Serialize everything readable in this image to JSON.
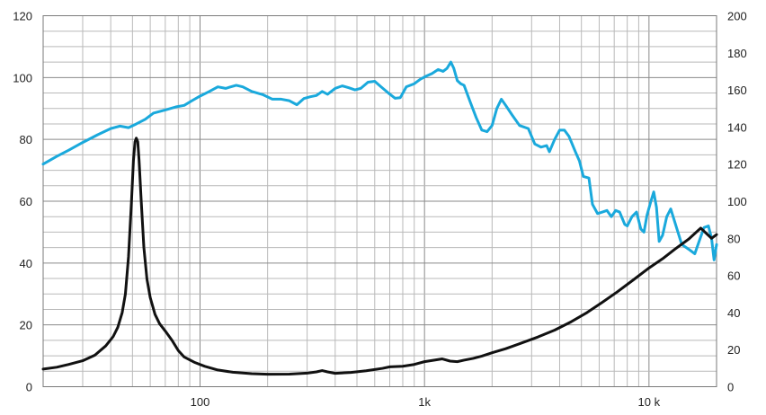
{
  "chart_data": {
    "type": "line",
    "x_scale": "log",
    "xlim": [
      20,
      20000
    ],
    "y_left_lim": [
      0,
      120
    ],
    "y_right_lim": [
      0,
      200
    ],
    "grid": true,
    "x_ticks": [
      {
        "value": 100,
        "label": "100"
      },
      {
        "value": 1000,
        "label": "1k"
      },
      {
        "value": 10000,
        "label": "10 k"
      }
    ],
    "y_left_ticks": [
      {
        "value": 0,
        "label": "0"
      },
      {
        "value": 20,
        "label": "20"
      },
      {
        "value": 40,
        "label": "40"
      },
      {
        "value": 60,
        "label": "60"
      },
      {
        "value": 80,
        "label": "80"
      },
      {
        "value": 100,
        "label": "100"
      },
      {
        "value": 120,
        "label": "120"
      }
    ],
    "y_right_ticks": [
      {
        "value": 0,
        "label": "0"
      },
      {
        "value": 20,
        "label": "20"
      },
      {
        "value": 40,
        "label": "40"
      },
      {
        "value": 60,
        "label": "60"
      },
      {
        "value": 80,
        "label": "80"
      },
      {
        "value": 100,
        "label": "100"
      },
      {
        "value": 120,
        "label": "120"
      },
      {
        "value": 140,
        "label": "140"
      },
      {
        "value": 160,
        "label": "160"
      },
      {
        "value": 180,
        "label": "180"
      },
      {
        "value": 200,
        "label": "200"
      }
    ],
    "colors": {
      "left_series": "#1aa9dc",
      "right_series": "#111111"
    },
    "series": [
      {
        "axis": "left",
        "color": "#1aa9dc",
        "points": [
          [
            20,
            72
          ],
          [
            23,
            74.5
          ],
          [
            26,
            76.5
          ],
          [
            30,
            79
          ],
          [
            35,
            81.5
          ],
          [
            40,
            83.5
          ],
          [
            44,
            84.3
          ],
          [
            48,
            83.8
          ],
          [
            52,
            85
          ],
          [
            57,
            86.5
          ],
          [
            62,
            88.5
          ],
          [
            70,
            89.5
          ],
          [
            78,
            90.5
          ],
          [
            85,
            91
          ],
          [
            92,
            92.5
          ],
          [
            100,
            94
          ],
          [
            110,
            95.5
          ],
          [
            120,
            97
          ],
          [
            130,
            96.5
          ],
          [
            145,
            97.5
          ],
          [
            155,
            97
          ],
          [
            170,
            95.5
          ],
          [
            190,
            94.5
          ],
          [
            210,
            93
          ],
          [
            230,
            93
          ],
          [
            250,
            92.5
          ],
          [
            270,
            91.2
          ],
          [
            290,
            93.2
          ],
          [
            310,
            93.8
          ],
          [
            330,
            94.2
          ],
          [
            350,
            95.5
          ],
          [
            370,
            94.6
          ],
          [
            400,
            96.5
          ],
          [
            430,
            97.3
          ],
          [
            460,
            96.7
          ],
          [
            490,
            96
          ],
          [
            520,
            96.5
          ],
          [
            560,
            98.5
          ],
          [
            600,
            98.8
          ],
          [
            640,
            97
          ],
          [
            690,
            95
          ],
          [
            740,
            93.3
          ],
          [
            780,
            93.5
          ],
          [
            830,
            97
          ],
          [
            900,
            98
          ],
          [
            960,
            99.5
          ],
          [
            1020,
            100.5
          ],
          [
            1080,
            101.3
          ],
          [
            1150,
            102.6
          ],
          [
            1210,
            102
          ],
          [
            1260,
            103
          ],
          [
            1310,
            105
          ],
          [
            1350,
            103
          ],
          [
            1400,
            99
          ],
          [
            1450,
            98
          ],
          [
            1500,
            97.5
          ],
          [
            1600,
            92
          ],
          [
            1700,
            87
          ],
          [
            1800,
            83
          ],
          [
            1900,
            82.5
          ],
          [
            2000,
            84.5
          ],
          [
            2100,
            90
          ],
          [
            2200,
            93
          ],
          [
            2300,
            91
          ],
          [
            2450,
            88
          ],
          [
            2650,
            84.5
          ],
          [
            2900,
            83.5
          ],
          [
            3100,
            78.5
          ],
          [
            3300,
            77.5
          ],
          [
            3500,
            78
          ],
          [
            3600,
            76
          ],
          [
            3800,
            80
          ],
          [
            4000,
            83
          ],
          [
            4200,
            83
          ],
          [
            4400,
            81
          ],
          [
            4700,
            76
          ],
          [
            4900,
            73
          ],
          [
            5100,
            68
          ],
          [
            5400,
            67.5
          ],
          [
            5600,
            59
          ],
          [
            5900,
            56
          ],
          [
            6200,
            56.5
          ],
          [
            6500,
            57
          ],
          [
            6800,
            55
          ],
          [
            7100,
            57
          ],
          [
            7400,
            56.5
          ],
          [
            7800,
            52.5
          ],
          [
            8000,
            52
          ],
          [
            8400,
            55
          ],
          [
            8800,
            56.5
          ],
          [
            9200,
            51
          ],
          [
            9500,
            50
          ],
          [
            9800,
            55.5
          ],
          [
            10200,
            60
          ],
          [
            10500,
            63
          ],
          [
            10800,
            58
          ],
          [
            11100,
            47
          ],
          [
            11500,
            49
          ],
          [
            12000,
            55
          ],
          [
            12500,
            57.5
          ],
          [
            13000,
            53.5
          ],
          [
            14000,
            46
          ],
          [
            15000,
            44.5
          ],
          [
            16000,
            43
          ],
          [
            17000,
            48.5
          ],
          [
            17600,
            51.5
          ],
          [
            18400,
            52
          ],
          [
            19000,
            48
          ],
          [
            19500,
            41
          ],
          [
            20000,
            46
          ]
        ]
      },
      {
        "axis": "right",
        "color": "#111111",
        "points": [
          [
            20,
            9.5
          ],
          [
            23,
            10.5
          ],
          [
            26,
            12
          ],
          [
            30,
            14
          ],
          [
            34,
            17
          ],
          [
            38,
            22
          ],
          [
            41,
            27
          ],
          [
            43,
            32
          ],
          [
            45,
            40
          ],
          [
            46.5,
            50
          ],
          [
            48,
            70
          ],
          [
            49.5,
            100
          ],
          [
            50.5,
            122
          ],
          [
            51.3,
            132
          ],
          [
            52,
            134
          ],
          [
            52.8,
            132
          ],
          [
            53.5,
            122
          ],
          [
            54.7,
            100
          ],
          [
            56.2,
            75
          ],
          [
            58,
            58
          ],
          [
            60,
            48
          ],
          [
            63,
            39
          ],
          [
            66,
            34
          ],
          [
            70,
            30
          ],
          [
            75,
            25
          ],
          [
            80,
            19.5
          ],
          [
            85,
            16
          ],
          [
            95,
            13
          ],
          [
            105,
            11
          ],
          [
            120,
            9
          ],
          [
            140,
            7.8
          ],
          [
            170,
            7
          ],
          [
            200,
            6.7
          ],
          [
            250,
            6.8
          ],
          [
            300,
            7.3
          ],
          [
            330,
            8
          ],
          [
            350,
            8.7
          ],
          [
            370,
            8
          ],
          [
            400,
            7.2
          ],
          [
            470,
            7.7
          ],
          [
            550,
            8.6
          ],
          [
            650,
            9.9
          ],
          [
            700,
            10.7
          ],
          [
            800,
            11
          ],
          [
            900,
            12
          ],
          [
            1000,
            13.5
          ],
          [
            1100,
            14.3
          ],
          [
            1200,
            15
          ],
          [
            1300,
            13.8
          ],
          [
            1400,
            13.5
          ],
          [
            1500,
            14.3
          ],
          [
            1650,
            15.3
          ],
          [
            1800,
            16.5
          ],
          [
            2000,
            18.3
          ],
          [
            2300,
            20.5
          ],
          [
            2700,
            23.5
          ],
          [
            3200,
            26.8
          ],
          [
            3800,
            30.5
          ],
          [
            4500,
            35
          ],
          [
            5300,
            40
          ],
          [
            6200,
            45.5
          ],
          [
            7200,
            51
          ],
          [
            8500,
            57.5
          ],
          [
            10000,
            64
          ],
          [
            11500,
            69
          ],
          [
            13000,
            74
          ],
          [
            15000,
            79.5
          ],
          [
            17000,
            85.5
          ],
          [
            19000,
            80
          ],
          [
            20000,
            82
          ]
        ]
      }
    ]
  }
}
